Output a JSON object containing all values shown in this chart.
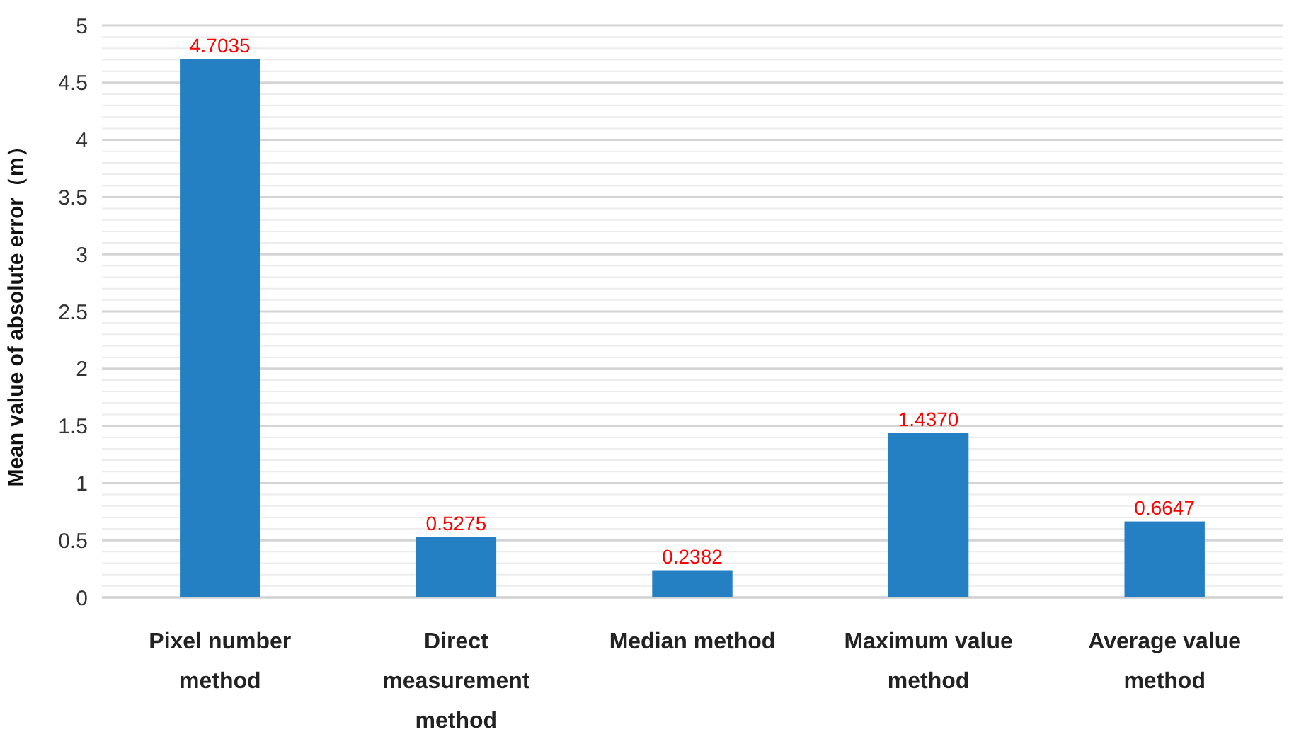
{
  "chart_data": {
    "type": "bar",
    "ylabel": "Mean value of absolute error（m）",
    "categories": [
      "Pixel number method",
      "Direct measurement method",
      "Median method",
      "Maximum value method",
      "Average value method"
    ],
    "values": [
      4.7035,
      0.5275,
      0.2382,
      1.437,
      0.6647
    ],
    "value_labels": [
      "4.7035",
      "0.5275",
      "0.2382",
      "1.4370",
      "0.6647"
    ],
    "color": "#2580c3",
    "ylim": [
      0,
      5
    ],
    "yticks": [
      0,
      {
        "value": 0.1,
        "label": null
      },
      {
        "value": 0.2,
        "label": null
      },
      {
        "value": 0.3,
        "label": null
      },
      {
        "value": 0.4,
        "label": null
      },
      0.5,
      {
        "value": 0.6,
        "label": null
      },
      {
        "value": 0.7,
        "label": null
      },
      {
        "value": 0.8,
        "label": null
      },
      {
        "value": 0.9,
        "label": null
      },
      1,
      {
        "value": 1.1,
        "label": null
      },
      {
        "value": 1.2,
        "label": null
      },
      {
        "value": 1.3,
        "label": null
      },
      {
        "value": 1.4,
        "label": null
      },
      1.5,
      {
        "value": 1.6,
        "label": null
      },
      {
        "value": 1.7,
        "label": null
      },
      {
        "value": 1.8,
        "label": null
      },
      {
        "value": 1.9,
        "label": null
      },
      2,
      {
        "value": 2.1,
        "label": null
      },
      {
        "value": 2.2,
        "label": null
      },
      {
        "value": 2.3,
        "label": null
      },
      {
        "value": 2.4,
        "label": null
      },
      2.5,
      {
        "value": 2.6,
        "label": null
      },
      {
        "value": 2.7,
        "label": null
      },
      {
        "value": 2.8,
        "label": null
      },
      {
        "value": 2.9,
        "label": null
      },
      3,
      {
        "value": 3.1,
        "label": null
      },
      {
        "value": 3.2,
        "label": null
      },
      {
        "value": 3.3,
        "label": null
      },
      {
        "value": 3.4,
        "label": null
      },
      3.5,
      {
        "value": 3.6,
        "label": null
      },
      {
        "value": 3.7,
        "label": null
      },
      {
        "value": 3.8,
        "label": null
      },
      {
        "value": 3.9,
        "label": null
      },
      4,
      {
        "value": 4.1,
        "label": null
      },
      {
        "value": 4.2,
        "label": null
      },
      {
        "value": 4.3,
        "label": null
      },
      {
        "value": 4.4,
        "label": null
      },
      4.5,
      {
        "value": 4.6,
        "label": null
      },
      {
        "value": 4.7,
        "label": null
      },
      {
        "value": 4.8,
        "label": null
      },
      {
        "value": 4.9,
        "label": null
      },
      5
    ],
    "grid": "y"
  }
}
